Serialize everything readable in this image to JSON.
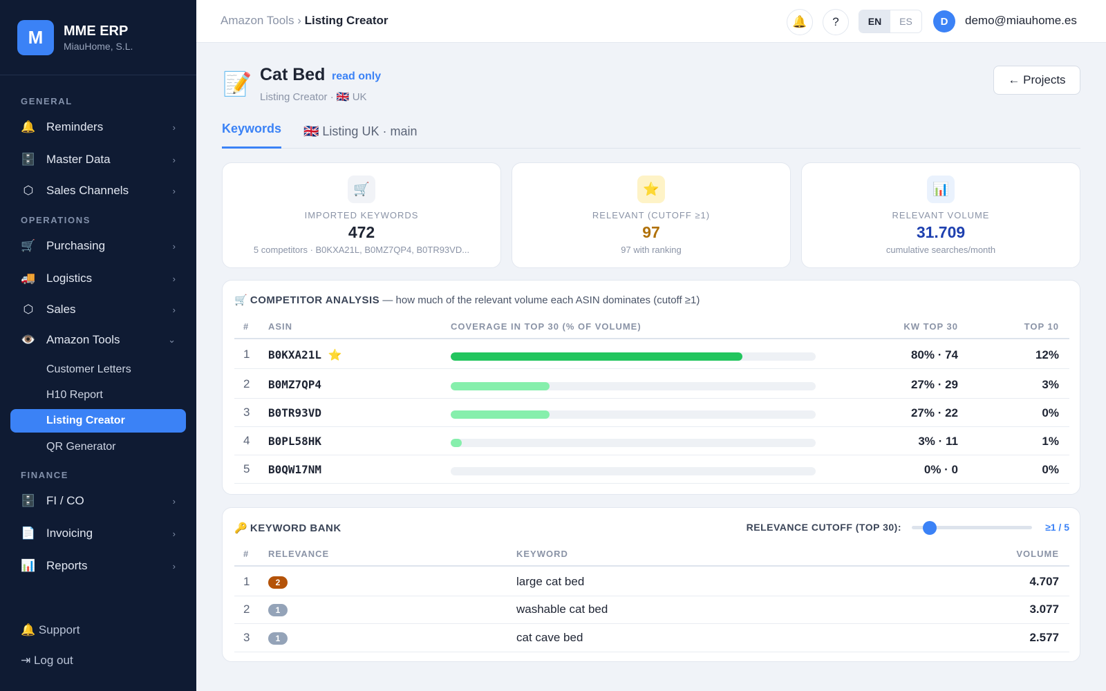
{
  "brand": {
    "logo": "M",
    "name": "MME ERP",
    "company": "MiauHome, S.L."
  },
  "sidebar": {
    "sections": {
      "general": "GENERAL",
      "operations": "OPERATIONS",
      "finance": "FINANCE"
    },
    "items": {
      "reminders": {
        "icon": "🔔",
        "label": "Reminders"
      },
      "master_data": {
        "icon": "🗄️",
        "label": "Master Data"
      },
      "sales_channels": {
        "icon": "⬡",
        "label": "Sales Channels"
      },
      "purchasing": {
        "icon": "🛒",
        "label": "Purchasing"
      },
      "logistics": {
        "icon": "🚚",
        "label": "Logistics"
      },
      "sales": {
        "icon": "⬡",
        "label": "Sales"
      },
      "amazon_tools": {
        "icon": "👁️",
        "label": "Amazon Tools"
      },
      "fico": {
        "icon": "🗄️",
        "label": "FI / CO"
      },
      "invoicing": {
        "icon": "📄",
        "label": "Invoicing"
      },
      "reports": {
        "icon": "📊",
        "label": "Reports"
      }
    },
    "chevron_right": "›",
    "chevron_down": "⌄",
    "sub_items": {
      "customer_letters": "Customer Letters",
      "h10_report": "H10 Report",
      "listing_creator": "Listing Creator",
      "qr_generator": "QR Generator"
    },
    "support": "🔔 Support",
    "logout": "⇥ Log out"
  },
  "topbar": {
    "crumb_parent": "Amazon Tools",
    "crumb_sep": "›",
    "crumb_current": "Listing Creator",
    "bell": "🔔",
    "help": "?",
    "lang_en": "EN",
    "lang_es": "ES",
    "avatar": "D",
    "email": "demo@miauhome.es"
  },
  "page": {
    "emoji": "📝",
    "title": "Cat Bed",
    "badge": "read only",
    "subtitle": "Listing Creator · 🇬🇧 UK",
    "projects_button": "← Projects"
  },
  "tabs": {
    "keywords": "Keywords",
    "listing": "🇬🇧 Listing UK · main"
  },
  "stats": {
    "imported": {
      "icon": "🛒",
      "label": "IMPORTED KEYWORDS",
      "value": "472",
      "sub": "5 competitors · B0KXA21L, B0MZ7QP4, B0TR93VD..."
    },
    "relevant": {
      "icon": "⭐",
      "label": "RELEVANT (CUTOFF ≥1)",
      "value": "97",
      "sub": "97 with ranking"
    },
    "volume": {
      "icon": "📊",
      "label": "RELEVANT VOLUME",
      "value": "31.709",
      "sub": "cumulative searches/month"
    }
  },
  "colors": {
    "accent": "#3b82f6",
    "relevant_value": "#b07109",
    "volume_value": "#1e40af",
    "bar_top": "#22c55e",
    "bar": "#86efac",
    "badge_high": "#b45309",
    "badge_low": "#94a3b8"
  },
  "competitors": {
    "icon": "🛒",
    "title": "COMPETITOR ANALYSIS",
    "description": "— how much of the relevant volume each ASIN dominates (cutoff ≥1)",
    "headers": {
      "idx": "#",
      "asin": "ASIN",
      "coverage": "COVERAGE IN TOP 30 (% OF VOLUME)",
      "kw_top30": "KW TOP 30",
      "top10": "TOP 10"
    },
    "rows": [
      {
        "idx": "1",
        "asin": "B0KXA21L",
        "star": "⭐",
        "coverage": 0.8,
        "kw": "80% · 74",
        "top10": "12%"
      },
      {
        "idx": "2",
        "asin": "B0MZ7QP4",
        "star": "",
        "coverage": 0.27,
        "kw": "27% · 29",
        "top10": "3%"
      },
      {
        "idx": "3",
        "asin": "B0TR93VD",
        "star": "",
        "coverage": 0.27,
        "kw": "27% · 22",
        "top10": "0%"
      },
      {
        "idx": "4",
        "asin": "B0PL58HK",
        "star": "",
        "coverage": 0.03,
        "kw": "3% · 11",
        "top10": "1%"
      },
      {
        "idx": "5",
        "asin": "B0QW17NM",
        "star": "",
        "coverage": 0.0,
        "kw": "0% · 0",
        "top10": "0%"
      }
    ]
  },
  "keyword_bank": {
    "icon": "🔑",
    "title": "KEYWORD BANK",
    "cutoff_label": "RELEVANCE CUTOFF (TOP 30):",
    "cutoff_value": "≥1 / 5",
    "cutoff_level": 1,
    "cutoff_max": 5,
    "headers": {
      "idx": "#",
      "relevance": "RELEVANCE",
      "keyword": "KEYWORD",
      "volume": "VOLUME"
    },
    "rows": [
      {
        "idx": "1",
        "relevance": "2",
        "keyword": "large cat bed",
        "volume": "4.707"
      },
      {
        "idx": "2",
        "relevance": "1",
        "keyword": "washable cat bed",
        "volume": "3.077"
      },
      {
        "idx": "3",
        "relevance": "1",
        "keyword": "cat cave bed",
        "volume": "2.577"
      }
    ]
  }
}
